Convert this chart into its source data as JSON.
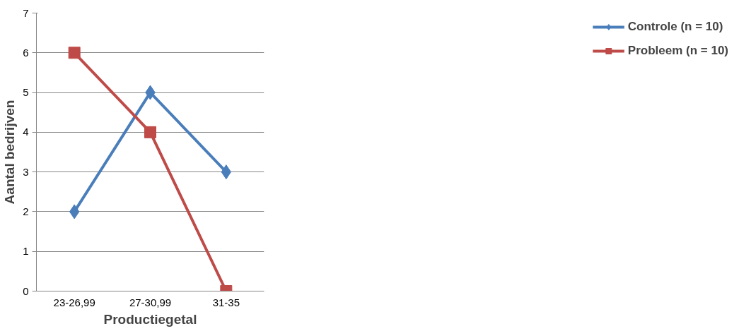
{
  "chart_data": {
    "type": "line",
    "xlabel": "Productiegetal",
    "ylabel": "Aantal bedrijven",
    "categories": [
      "23-26,99",
      "27-30,99",
      "31-35"
    ],
    "series": [
      {
        "name": "Controle (n = 10)",
        "color": "#4a7ebb",
        "values": [
          2,
          5,
          3
        ],
        "marker": "diamond"
      },
      {
        "name": "Probleem (n = 10)",
        "color": "#be4b48",
        "values": [
          6,
          4,
          0
        ],
        "marker": "square"
      }
    ],
    "ylim": [
      0,
      7
    ],
    "yticks": [
      0,
      1,
      2,
      3,
      4,
      5,
      6,
      7
    ],
    "grid": "y",
    "legend": "right",
    "line_style": "solid"
  }
}
